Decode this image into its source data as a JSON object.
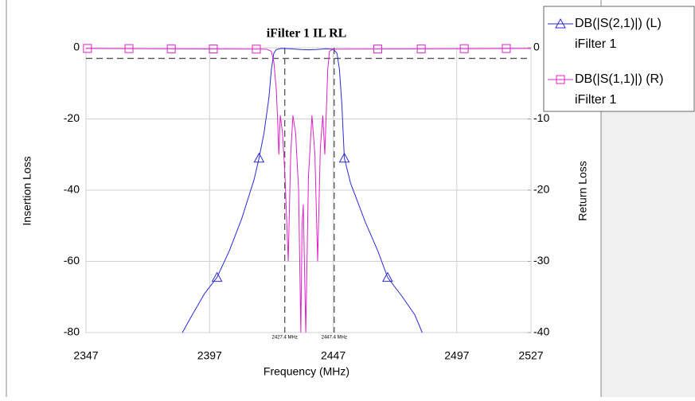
{
  "chart_data": {
    "type": "line",
    "title": "iFilter 1 IL RL",
    "xlabel": "Frequency (MHz)",
    "ylabel": "Insertion Loss",
    "y2label": "Return Loss",
    "xlim": [
      2347,
      2527
    ],
    "xticks": [
      2347,
      2397,
      2447,
      2497,
      2527
    ],
    "ylim": [
      -80,
      0
    ],
    "yticks": [
      0,
      -20,
      -40,
      -60,
      -80
    ],
    "y2lim": [
      -40,
      0
    ],
    "y2ticks": [
      0,
      -10,
      -20,
      -30,
      -40
    ],
    "grid": true,
    "legend": "upper right",
    "vlines": [
      {
        "x": 2427.4,
        "label": "2427.4 MHz"
      },
      {
        "x": 2447.4,
        "label": "2447.4 MHz"
      }
    ],
    "hline": -3,
    "series": [
      {
        "name": "DB(|S(2,1)|) (L)",
        "source": "iFilter 1",
        "color": "#2b2bd6",
        "marker": "triangle",
        "axis": "y",
        "x": [
          2386,
          2390,
          2395,
          2400,
          2405,
          2410,
          2415,
          2417,
          2419,
          2421,
          2422,
          2423,
          2424,
          2426,
          2430,
          2434,
          2437,
          2440,
          2444,
          2447,
          2448.5,
          2449.5,
          2450.5,
          2451.5,
          2454,
          2460,
          2465,
          2469,
          2475,
          2480,
          2483
        ],
        "values": [
          -80,
          -75,
          -69,
          -64.5,
          -57,
          -48,
          -37,
          -31,
          -24,
          -14,
          -6,
          -1.5,
          -0.5,
          -0.2,
          -0.3,
          -0.5,
          -0.6,
          -0.5,
          -0.3,
          -0.4,
          -1.5,
          -6,
          -16,
          -31,
          -38,
          -49,
          -57,
          -64.5,
          -70,
          -75,
          -80
        ],
        "marker_x": [
          2400,
          2417,
          2451.5,
          2469
        ]
      },
      {
        "name": "DB(|S(1,1)|) (R)",
        "source": "iFilter 1",
        "color": "#e020c8",
        "marker": "square",
        "axis": "y2",
        "x": [
          2347,
          2420,
          2422,
          2423,
          2424,
          2424.5,
          2425,
          2425.6,
          2426.5,
          2427.5,
          2428.8,
          2429.8,
          2430.7,
          2431.8,
          2433,
          2433.9,
          2434.4,
          2434.9,
          2435.9,
          2437,
          2438.4,
          2439.6,
          2440.7,
          2441.8,
          2442.8,
          2443.6,
          2444.2,
          2444.8,
          2445.5,
          2447,
          2527
        ],
        "values": [
          -0.1,
          -0.2,
          -0.5,
          -2,
          -6,
          -10,
          -15,
          -9.5,
          -12,
          -18,
          -30,
          -15,
          -9.5,
          -12,
          -20,
          -40,
          -25,
          -22,
          -40,
          -18,
          -9.5,
          -15,
          -30,
          -14,
          -9.5,
          -15,
          -9,
          -3,
          -0.5,
          -0.2,
          -0.1
        ],
        "marker_x": [
          2347.6,
          2364.4,
          2381.5,
          2398.5,
          2415.9,
          2465,
          2482.6,
          2500,
          2517
        ]
      }
    ]
  }
}
